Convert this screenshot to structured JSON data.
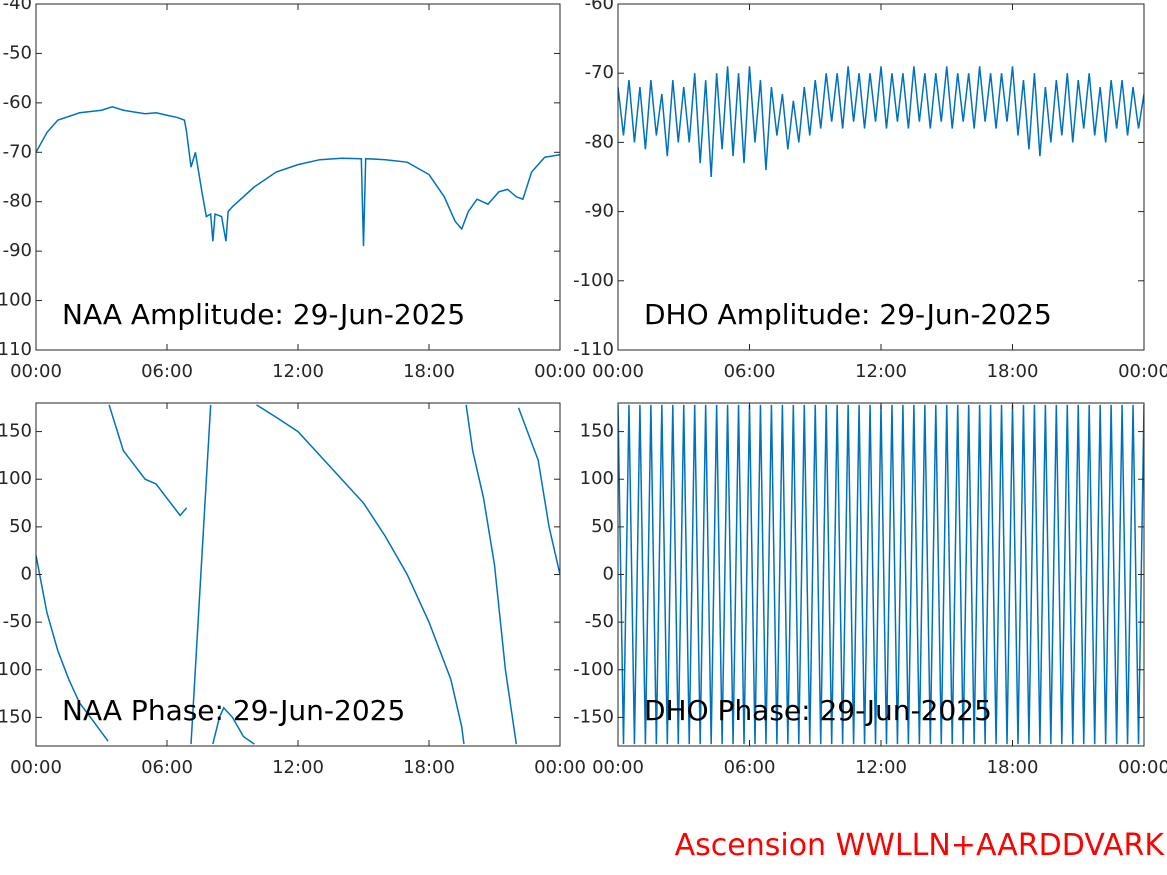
{
  "chart_data": [
    {
      "type": "line",
      "annotation": "NAA Amplitude: 29-Jun-2025",
      "color": "#0072bd",
      "xlim": [
        0,
        24
      ],
      "xticks": [
        {
          "value": 0,
          "label": "00:00"
        },
        {
          "value": 6,
          "label": "06:00"
        },
        {
          "value": 12,
          "label": "12:00"
        },
        {
          "value": 18,
          "label": "18:00"
        },
        {
          "value": 24,
          "label": "00:00"
        }
      ],
      "ylim": [
        -110,
        -40
      ],
      "yticks": [
        -110,
        -100,
        -90,
        -80,
        -70,
        -60,
        -50,
        -40
      ],
      "x": [
        0,
        0.5,
        1,
        2,
        3,
        3.5,
        4,
        5,
        5.5,
        6,
        6.5,
        6.8,
        6.9,
        7.1,
        7.3,
        7.6,
        7.8,
        8,
        8.1,
        8.2,
        8.5,
        8.7,
        8.8,
        9,
        10,
        11,
        12,
        13,
        14,
        14.9,
        15,
        15.1,
        16,
        17,
        18,
        18.7,
        19.2,
        19.5,
        19.8,
        20.2,
        20.7,
        21.2,
        21.6,
        22,
        22.3,
        22.7,
        23.3,
        24
      ],
      "values": [
        -70,
        -66,
        -63.5,
        -62,
        -61.5,
        -60.8,
        -61.5,
        -62.2,
        -62,
        -62.5,
        -63,
        -63.5,
        -66,
        -73,
        -70,
        -78,
        -83,
        -82.5,
        -88,
        -82.5,
        -83,
        -88,
        -82,
        -81,
        -77,
        -74,
        -72.5,
        -71.5,
        -71.2,
        -71.3,
        -89,
        -71.3,
        -71.5,
        -72,
        -74.5,
        -79,
        -84,
        -85.5,
        -82,
        -79.5,
        -80.5,
        -78,
        -77.5,
        -79,
        -79.5,
        -74,
        -71,
        -70.5
      ]
    },
    {
      "type": "line",
      "annotation": "DHO Amplitude: 29-Jun-2025",
      "color": "#0072bd",
      "xlim": [
        0,
        24
      ],
      "xticks": [
        {
          "value": 0,
          "label": "00:00"
        },
        {
          "value": 6,
          "label": "06:00"
        },
        {
          "value": 12,
          "label": "12:00"
        },
        {
          "value": 18,
          "label": "18:00"
        },
        {
          "value": 24,
          "label": "00:00"
        }
      ],
      "ylim": [
        -110,
        -60
      ],
      "yticks": [
        -110,
        -100,
        -90,
        -80,
        -70,
        -60
      ],
      "x": [
        0,
        0.25,
        0.5,
        0.75,
        1,
        1.25,
        1.5,
        1.75,
        2,
        2.25,
        2.5,
        2.75,
        3,
        3.25,
        3.5,
        3.75,
        4,
        4.25,
        4.5,
        4.75,
        5,
        5.25,
        5.5,
        5.75,
        6,
        6.25,
        6.5,
        6.75,
        7,
        7.25,
        7.5,
        7.75,
        8,
        8.25,
        8.5,
        8.75,
        9,
        9.25,
        9.5,
        9.75,
        10,
        10.25,
        10.5,
        10.75,
        11,
        11.25,
        11.5,
        11.75,
        12,
        12.25,
        12.5,
        12.75,
        13,
        13.25,
        13.5,
        13.75,
        14,
        14.25,
        14.5,
        14.75,
        15,
        15.25,
        15.5,
        15.75,
        16,
        16.25,
        16.5,
        16.75,
        17,
        17.25,
        17.5,
        17.75,
        18,
        18.25,
        18.5,
        18.75,
        19,
        19.25,
        19.5,
        19.75,
        20,
        20.25,
        20.5,
        20.75,
        21,
        21.25,
        21.5,
        21.75,
        22,
        22.25,
        22.5,
        22.75,
        23,
        23.25,
        23.5,
        23.75,
        24
      ],
      "values": [
        -72,
        -79,
        -71,
        -80,
        -72,
        -81,
        -71,
        -79,
        -73,
        -82,
        -71,
        -80,
        -72,
        -80,
        -70,
        -83,
        -71,
        -85,
        -70,
        -81,
        -69,
        -82,
        -70,
        -83,
        -69,
        -80,
        -71,
        -84,
        -72,
        -79,
        -73,
        -81,
        -74,
        -80,
        -72,
        -79,
        -71,
        -78,
        -70,
        -77,
        -70,
        -78,
        -69,
        -77,
        -70,
        -78,
        -70,
        -77,
        -69,
        -78,
        -70,
        -77,
        -70,
        -78,
        -69,
        -77,
        -70,
        -78,
        -70,
        -77,
        -69,
        -78,
        -70,
        -77,
        -70,
        -78,
        -69,
        -77,
        -70,
        -78,
        -70,
        -77,
        -69,
        -79,
        -71,
        -81,
        -70,
        -82,
        -72,
        -80,
        -71,
        -79,
        -70,
        -80,
        -71,
        -78,
        -70,
        -79,
        -72,
        -80,
        -71,
        -78,
        -71,
        -79,
        -72,
        -78,
        -73
      ]
    },
    {
      "type": "line",
      "annotation": "NAA Phase: 29-Jun-2025",
      "color": "#0072bd",
      "xlim": [
        0,
        24
      ],
      "xticks": [
        {
          "value": 0,
          "label": "00:00"
        },
        {
          "value": 6,
          "label": "06:00"
        },
        {
          "value": 12,
          "label": "12:00"
        },
        {
          "value": 18,
          "label": "18:00"
        },
        {
          "value": 24,
          "label": "00:00"
        }
      ],
      "ylim": [
        -180,
        180
      ],
      "yticks": [
        -150,
        -100,
        -50,
        0,
        50,
        100,
        150
      ],
      "x": [
        0,
        0.5,
        1,
        1.5,
        2,
        2.5,
        3.3,
        null,
        3.35,
        4,
        5,
        5.5,
        6.6,
        6.9,
        null,
        7.1,
        8,
        null,
        8.1,
        8.4,
        8.6,
        9,
        9.5,
        10,
        null,
        10.1,
        11,
        12,
        13,
        14,
        15,
        16,
        17,
        18,
        19,
        19.5,
        19.6,
        null,
        19.7,
        20,
        20.5,
        21,
        21.5,
        22,
        null,
        22.1,
        23,
        23.5,
        24
      ],
      "values": [
        20,
        -40,
        -80,
        -110,
        -135,
        -150,
        -175,
        null,
        178,
        130,
        100,
        95,
        62,
        70,
        null,
        -178,
        178,
        null,
        -178,
        -150,
        -140,
        -150,
        -170,
        -178,
        null,
        178,
        165,
        150,
        125,
        100,
        75,
        40,
        0,
        -50,
        -110,
        -160,
        -178,
        null,
        178,
        130,
        80,
        10,
        -100,
        -178,
        null,
        175,
        120,
        50,
        0
      ]
    },
    {
      "type": "line",
      "annotation": "DHO Phase: 29-Jun-2025",
      "color": "#0072bd",
      "xlim": [
        0,
        24
      ],
      "xticks": [
        {
          "value": 0,
          "label": "00:00"
        },
        {
          "value": 6,
          "label": "06:00"
        },
        {
          "value": 12,
          "label": "12:00"
        },
        {
          "value": 18,
          "label": "18:00"
        },
        {
          "value": 24,
          "label": "00:00"
        }
      ],
      "ylim": [
        -180,
        180
      ],
      "yticks": [
        -150,
        -100,
        -50,
        0,
        50,
        100,
        150
      ],
      "x": [
        0,
        0.25,
        0.5,
        0.75,
        1,
        1.25,
        1.5,
        1.75,
        2,
        2.25,
        2.5,
        2.75,
        3,
        3.25,
        3.5,
        3.75,
        4,
        4.25,
        4.5,
        4.75,
        5,
        5.25,
        5.5,
        5.75,
        6,
        6.25,
        6.5,
        6.75,
        7,
        7.25,
        7.5,
        7.75,
        8,
        8.25,
        8.5,
        8.75,
        9,
        9.25,
        9.5,
        9.75,
        10,
        10.25,
        10.5,
        10.75,
        11,
        11.25,
        11.5,
        11.75,
        12,
        12.25,
        12.5,
        12.75,
        13,
        13.25,
        13.5,
        13.75,
        14,
        14.25,
        14.5,
        14.75,
        15,
        15.25,
        15.5,
        15.75,
        16,
        16.25,
        16.5,
        16.75,
        17,
        17.25,
        17.5,
        17.75,
        18,
        18.25,
        18.5,
        18.75,
        19,
        19.25,
        19.5,
        19.75,
        20,
        20.25,
        20.5,
        20.75,
        21,
        21.25,
        21.5,
        21.75,
        22,
        22.25,
        22.5,
        22.75,
        23,
        23.25,
        23.5,
        23.75,
        24
      ],
      "values": [
        178,
        -178,
        178,
        -178,
        178,
        -178,
        178,
        -178,
        178,
        -178,
        178,
        -178,
        178,
        -178,
        178,
        -178,
        178,
        -178,
        178,
        -178,
        178,
        -178,
        178,
        -178,
        178,
        -178,
        178,
        -178,
        178,
        -178,
        178,
        -178,
        178,
        -178,
        178,
        -178,
        178,
        -178,
        178,
        -178,
        178,
        -178,
        178,
        -178,
        178,
        -178,
        178,
        -178,
        178,
        -178,
        178,
        -178,
        178,
        -178,
        178,
        -178,
        178,
        -178,
        178,
        -178,
        178,
        -178,
        178,
        -178,
        178,
        -178,
        178,
        -178,
        178,
        -178,
        178,
        -178,
        178,
        -178,
        178,
        -178,
        178,
        -178,
        178,
        -178,
        178,
        -178,
        178,
        -178,
        178,
        -178,
        178,
        -178,
        178,
        -178,
        178,
        -178,
        178,
        -178,
        178,
        -178,
        178
      ]
    }
  ],
  "footer": "Ascension WWLLN+AARDDVARK"
}
